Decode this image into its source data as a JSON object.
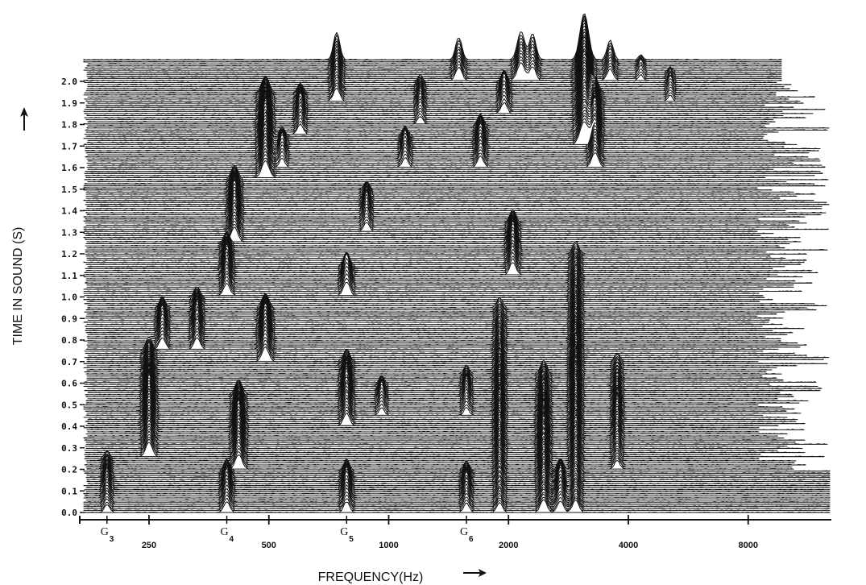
{
  "chart_data": {
    "type": "waterfall-spectrogram",
    "xlabel": "FREQUENCY(Hz)",
    "ylabel": "TIME IN SOUND (S)",
    "x_scale": "log",
    "ylim": [
      0.0,
      2.0
    ],
    "y_ticks": [
      "0.0",
      "0.1",
      "0.2",
      "0.3",
      "0.4",
      "0.5",
      "0.6",
      "0.7",
      "0.8",
      "0.9",
      "1.0",
      "1.1",
      "1.2",
      "1.3",
      "1.4",
      "1.5",
      "1.6",
      "1.7",
      "1.8",
      "1.9",
      "2.0"
    ],
    "x_ticks": [
      {
        "value": 250,
        "label": "250"
      },
      {
        "value": 500,
        "label": "500"
      },
      {
        "value": 1000,
        "label": "1000"
      },
      {
        "value": 2000,
        "label": "2000"
      },
      {
        "value": 4000,
        "label": "4000"
      },
      {
        "value": 8000,
        "label": "8000"
      }
    ],
    "note_labels": [
      {
        "note": "G",
        "octave": "3",
        "hz": 196
      },
      {
        "note": "G",
        "octave": "4",
        "hz": 392
      },
      {
        "note": "G",
        "octave": "5",
        "hz": 784
      },
      {
        "note": "G",
        "octave": "6",
        "hz": 1568
      }
    ],
    "peaks": [
      {
        "hz": 196,
        "t0": 0.0,
        "t1": 0.25,
        "amp": 22
      },
      {
        "hz": 250,
        "t0": 0.25,
        "t1": 0.75,
        "amp": 38
      },
      {
        "hz": 270,
        "t0": 0.75,
        "t1": 0.95,
        "amp": 30
      },
      {
        "hz": 330,
        "t0": 0.75,
        "t1": 1.0,
        "amp": 30
      },
      {
        "hz": 392,
        "t0": 0.0,
        "t1": 0.2,
        "amp": 30
      },
      {
        "hz": 392,
        "t0": 1.0,
        "t1": 1.25,
        "amp": 32
      },
      {
        "hz": 410,
        "t0": 1.25,
        "t1": 1.55,
        "amp": 38
      },
      {
        "hz": 420,
        "t0": 0.2,
        "t1": 0.55,
        "amp": 40
      },
      {
        "hz": 490,
        "t0": 1.55,
        "t1": 1.95,
        "amp": 46
      },
      {
        "hz": 490,
        "t0": 0.7,
        "t1": 0.95,
        "amp": 40
      },
      {
        "hz": 540,
        "t0": 1.6,
        "t1": 1.75,
        "amp": 24
      },
      {
        "hz": 600,
        "t0": 1.75,
        "t1": 1.95,
        "amp": 26
      },
      {
        "hz": 740,
        "t0": 1.9,
        "t1": 2.3,
        "amp": 34
      },
      {
        "hz": 784,
        "t0": 0.0,
        "t1": 0.2,
        "amp": 30
      },
      {
        "hz": 784,
        "t0": 0.4,
        "t1": 0.7,
        "amp": 34
      },
      {
        "hz": 784,
        "t0": 1.0,
        "t1": 1.15,
        "amp": 34
      },
      {
        "hz": 880,
        "t0": 1.3,
        "t1": 1.5,
        "amp": 24
      },
      {
        "hz": 960,
        "t0": 0.45,
        "t1": 0.6,
        "amp": 22
      },
      {
        "hz": 1100,
        "t0": 1.6,
        "t1": 1.75,
        "amp": 26
      },
      {
        "hz": 1200,
        "t0": 1.8,
        "t1": 2.0,
        "amp": 20
      },
      {
        "hz": 1500,
        "t0": 2.0,
        "t1": 2.35,
        "amp": 36
      },
      {
        "hz": 1568,
        "t0": 0.0,
        "t1": 0.2,
        "amp": 26
      },
      {
        "hz": 1568,
        "t0": 0.45,
        "t1": 0.65,
        "amp": 22
      },
      {
        "hz": 1700,
        "t0": 1.6,
        "t1": 1.8,
        "amp": 30
      },
      {
        "hz": 1900,
        "t0": 0.0,
        "t1": 0.95,
        "amp": 28
      },
      {
        "hz": 1950,
        "t0": 1.85,
        "t1": 2.0,
        "amp": 30
      },
      {
        "hz": 2050,
        "t0": 1.1,
        "t1": 1.35,
        "amp": 34
      },
      {
        "hz": 2150,
        "t0": 2.0,
        "t1": 2.4,
        "amp": 48
      },
      {
        "hz": 2300,
        "t0": 2.0,
        "t1": 2.25,
        "amp": 36
      },
      {
        "hz": 2450,
        "t0": 0.0,
        "t1": 0.65,
        "amp": 36
      },
      {
        "hz": 2700,
        "t0": 0.0,
        "t1": 0.2,
        "amp": 32
      },
      {
        "hz": 2950,
        "t0": 0.0,
        "t1": 1.2,
        "amp": 34
      },
      {
        "hz": 3100,
        "t0": 1.7,
        "t1": 2.4,
        "amp": 62
      },
      {
        "hz": 3300,
        "t0": 1.6,
        "t1": 1.95,
        "amp": 40
      },
      {
        "hz": 3600,
        "t0": 2.0,
        "t1": 2.35,
        "amp": 32
      },
      {
        "hz": 3750,
        "t0": 0.2,
        "t1": 0.7,
        "amp": 24
      },
      {
        "hz": 4300,
        "t0": 2.0,
        "t1": 2.1,
        "amp": 14
      },
      {
        "hz": 5100,
        "t0": 1.9,
        "t1": 2.05,
        "amp": 14
      }
    ]
  }
}
